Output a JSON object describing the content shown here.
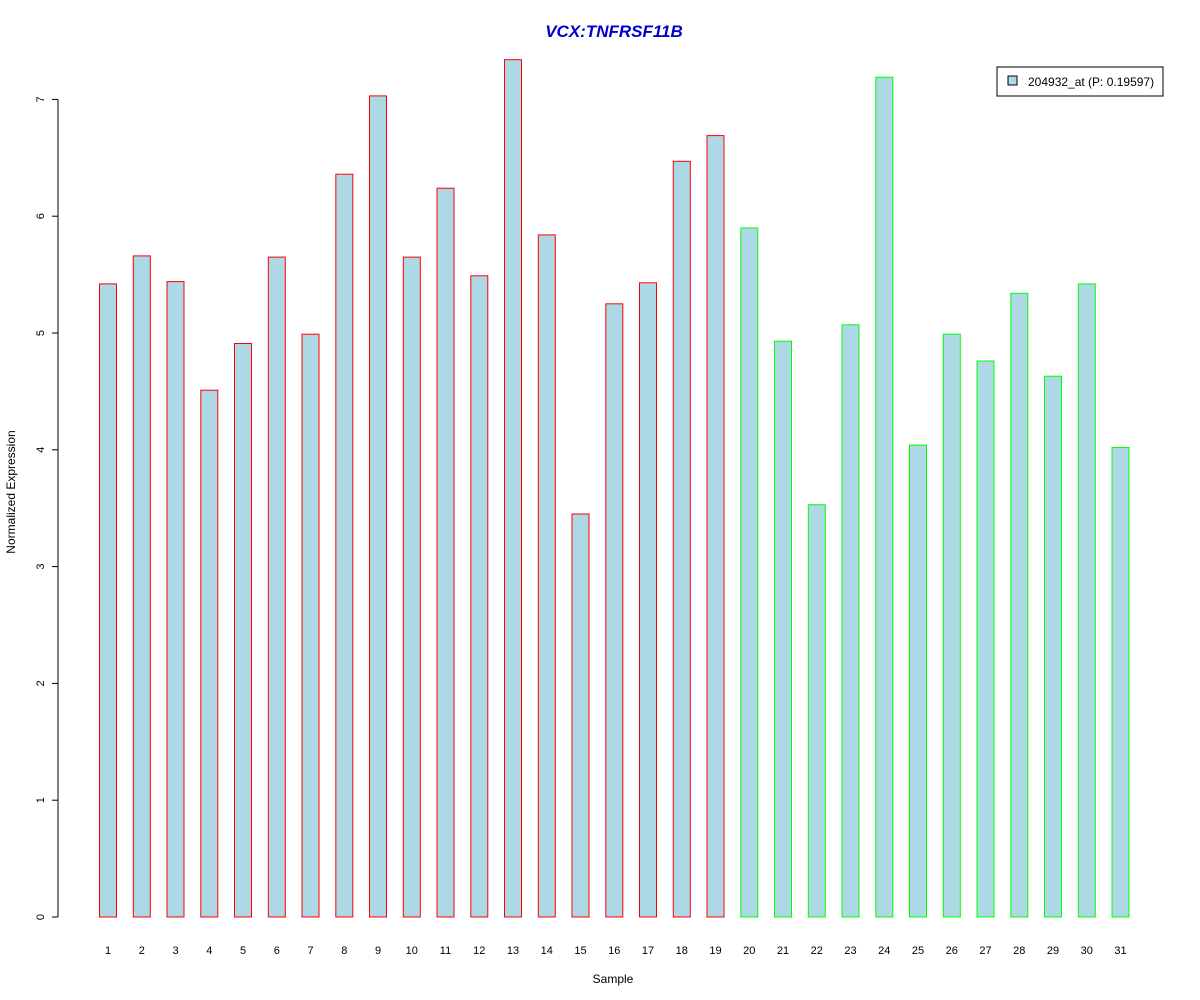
{
  "chart_data": {
    "type": "bar",
    "title": "VCX:TNFRSF11B",
    "xlabel": "Sample",
    "ylabel": "Normalized Expression",
    "ylim": [
      0,
      7.35
    ],
    "yticks": [
      0,
      1,
      2,
      3,
      4,
      5,
      6,
      7
    ],
    "categories": [
      "1",
      "2",
      "3",
      "4",
      "5",
      "6",
      "7",
      "8",
      "9",
      "10",
      "11",
      "12",
      "13",
      "14",
      "15",
      "16",
      "17",
      "18",
      "19",
      "20",
      "21",
      "22",
      "23",
      "24",
      "25",
      "26",
      "27",
      "28",
      "29",
      "30",
      "31"
    ],
    "values": [
      5.42,
      5.66,
      5.44,
      4.51,
      4.91,
      5.65,
      4.99,
      6.36,
      7.03,
      5.65,
      6.24,
      5.49,
      7.34,
      5.84,
      3.45,
      5.25,
      5.43,
      6.47,
      6.69,
      5.9,
      4.93,
      3.53,
      5.07,
      7.19,
      4.04,
      4.99,
      4.76,
      5.34,
      4.63,
      5.42,
      4.02
    ],
    "groups": [
      "red",
      "red",
      "red",
      "red",
      "red",
      "red",
      "red",
      "red",
      "red",
      "red",
      "red",
      "red",
      "red",
      "red",
      "red",
      "red",
      "red",
      "red",
      "red",
      "green",
      "green",
      "green",
      "green",
      "green",
      "green",
      "green",
      "green",
      "green",
      "green",
      "green",
      "green"
    ],
    "series": [
      {
        "name": "204932_at (P: 0.19597)",
        "values": [
          5.42,
          5.66,
          5.44,
          4.51,
          4.91,
          5.65,
          4.99,
          6.36,
          7.03,
          5.65,
          6.24,
          5.49,
          7.34,
          5.84,
          3.45,
          5.25,
          5.43,
          6.47,
          6.69,
          5.9,
          4.93,
          3.53,
          5.07,
          7.19,
          4.04,
          4.99,
          4.76,
          5.34,
          4.63,
          5.42,
          4.02
        ]
      }
    ],
    "legend_position": "top-right",
    "grid": false
  },
  "colors": {
    "bar_fill": "#add8e6",
    "group_red": "#ff0000",
    "group_green": "#00ff00",
    "title": "#0000cc"
  }
}
